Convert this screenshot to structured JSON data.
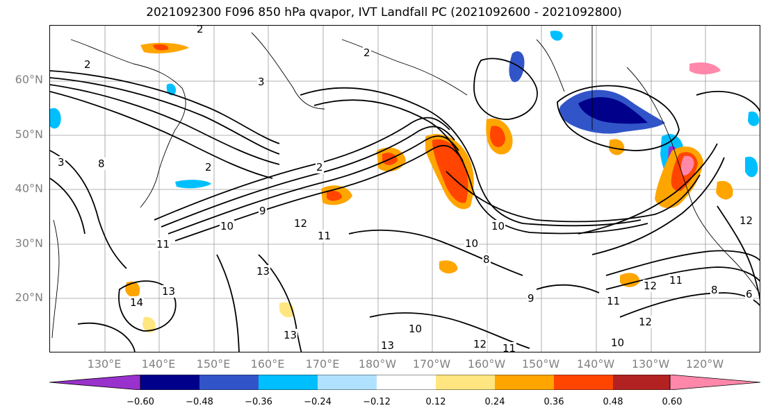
{
  "title": "2021092300 F096 850 hPa qvapor, IVT Landfall PC (2021092600 - 2021092800)",
  "map": {
    "lat_labels": [
      "60°N",
      "50°N",
      "40°N",
      "30°N",
      "20°N"
    ],
    "lon_labels": [
      "130°E",
      "140°E",
      "150°E",
      "160°E",
      "170°E",
      "180°W",
      "170°W",
      "160°W",
      "150°W",
      "140°W",
      "130°W",
      "120°W"
    ],
    "contour_labels": [
      "2",
      "2",
      "3",
      "2",
      "2",
      "2",
      "3",
      "8",
      "9",
      "10",
      "11",
      "12",
      "11",
      "13",
      "14",
      "13",
      "13",
      "10",
      "13",
      "12",
      "11",
      "10",
      "8",
      "9",
      "10",
      "12",
      "11",
      "12",
      "8",
      "10",
      "11",
      "12",
      "6"
    ]
  },
  "colorbar": {
    "colors": [
      "#9932cc",
      "#00008b",
      "#3155c8",
      "#00bfff",
      "#b0e2ff",
      "#ffffff",
      "#ffe680",
      "#ffa500",
      "#ff4500",
      "#b22222",
      "#ff88aa"
    ],
    "ticks": [
      "−0.60",
      "−0.48",
      "−0.36",
      "−0.24",
      "−0.12",
      "0.12",
      "0.24",
      "0.36",
      "0.48",
      "0.60"
    ]
  }
}
